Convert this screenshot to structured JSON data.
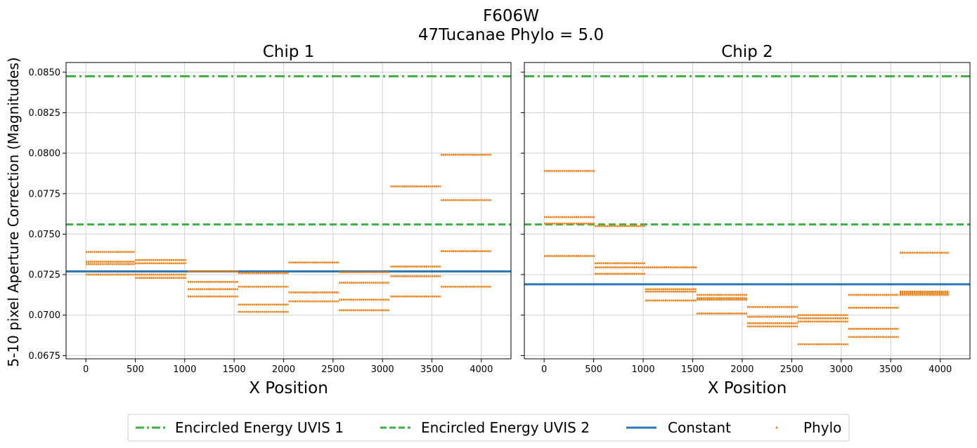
{
  "figure": {
    "title_line1": "F606W",
    "title_line2": "47Tucanae Phylo = 5.0",
    "ylabel": "5-10 pixel Aperture Correction (Magnitudes)"
  },
  "colors": {
    "ee": "#3cb043",
    "constant": "#2b78b8",
    "phylo": "#f07d10",
    "grid": "#d0d0d0"
  },
  "legend": [
    {
      "label": "Encircled Energy UVIS 1",
      "style": "dashdot"
    },
    {
      "label": "Encircled Energy UVIS 2",
      "style": "dashed"
    },
    {
      "label": "Constant",
      "style": "solid"
    },
    {
      "label": "Phylo",
      "style": "dot"
    }
  ],
  "chart_data": [
    {
      "type": "scatter",
      "title": "Chip 1",
      "xlabel": "X Position",
      "ylabel": "5-10 pixel Aperture Correction (Magnitudes)",
      "xlim": [
        -200,
        4300
      ],
      "ylim": [
        0.0673,
        0.0856
      ],
      "xticks": [
        0,
        500,
        1000,
        1500,
        2000,
        2500,
        3000,
        3500,
        4000
      ],
      "yticks": [
        0.0675,
        0.07,
        0.0725,
        0.075,
        0.0775,
        0.08,
        0.0825,
        0.085
      ],
      "ytick_labels": [
        "0.0675",
        "0.0700",
        "0.0725",
        "0.0750",
        "0.0775",
        "0.0800",
        "0.0825",
        "0.0850"
      ],
      "show_ytick_labels": true,
      "grid": true,
      "hlines": [
        {
          "name": "Encircled Energy UVIS 1",
          "y": 0.08475,
          "style": "dashdot"
        },
        {
          "name": "Encircled Energy UVIS 2",
          "y": 0.0756,
          "style": "dashed"
        },
        {
          "name": "Constant",
          "y": 0.0727,
          "style": "solid"
        }
      ],
      "phylo_segments": [
        {
          "x0": 0,
          "x1": 500,
          "y": 0.0739
        },
        {
          "x0": 0,
          "x1": 500,
          "y": 0.0733
        },
        {
          "x0": 0,
          "x1": 500,
          "y": 0.07315
        },
        {
          "x0": 0,
          "x1": 500,
          "y": 0.0725
        },
        {
          "x0": 500,
          "x1": 1020,
          "y": 0.0734
        },
        {
          "x0": 500,
          "x1": 1020,
          "y": 0.0732
        },
        {
          "x0": 500,
          "x1": 1020,
          "y": 0.0725
        },
        {
          "x0": 500,
          "x1": 1020,
          "y": 0.0723
        },
        {
          "x0": 1030,
          "x1": 1540,
          "y": 0.0727
        },
        {
          "x0": 1030,
          "x1": 1540,
          "y": 0.07205
        },
        {
          "x0": 1030,
          "x1": 1540,
          "y": 0.0716
        },
        {
          "x0": 1030,
          "x1": 1540,
          "y": 0.07115
        },
        {
          "x0": 1540,
          "x1": 2050,
          "y": 0.0726
        },
        {
          "x0": 1540,
          "x1": 2050,
          "y": 0.07175
        },
        {
          "x0": 1540,
          "x1": 2050,
          "y": 0.07065
        },
        {
          "x0": 1540,
          "x1": 2050,
          "y": 0.0702
        },
        {
          "x0": 2050,
          "x1": 2560,
          "y": 0.07325
        },
        {
          "x0": 2050,
          "x1": 2560,
          "y": 0.0714
        },
        {
          "x0": 2050,
          "x1": 2560,
          "y": 0.07085
        },
        {
          "x0": 2560,
          "x1": 3070,
          "y": 0.07265
        },
        {
          "x0": 2560,
          "x1": 3070,
          "y": 0.072
        },
        {
          "x0": 2560,
          "x1": 3070,
          "y": 0.07095
        },
        {
          "x0": 2560,
          "x1": 3070,
          "y": 0.0703
        },
        {
          "x0": 3080,
          "x1": 3590,
          "y": 0.07795
        },
        {
          "x0": 3080,
          "x1": 3590,
          "y": 0.073
        },
        {
          "x0": 3080,
          "x1": 3590,
          "y": 0.0724
        },
        {
          "x0": 3080,
          "x1": 3590,
          "y": 0.07115
        },
        {
          "x0": 3590,
          "x1": 4100,
          "y": 0.0799
        },
        {
          "x0": 3590,
          "x1": 4100,
          "y": 0.0771
        },
        {
          "x0": 3590,
          "x1": 4100,
          "y": 0.07395
        },
        {
          "x0": 3590,
          "x1": 4100,
          "y": 0.07175
        }
      ]
    },
    {
      "type": "scatter",
      "title": "Chip 2",
      "xlabel": "X Position",
      "ylabel": "",
      "xlim": [
        -200,
        4300
      ],
      "ylim": [
        0.0673,
        0.0856
      ],
      "xticks": [
        0,
        500,
        1000,
        1500,
        2000,
        2500,
        3000,
        3500,
        4000
      ],
      "yticks": [
        0.0675,
        0.07,
        0.0725,
        0.075,
        0.0775,
        0.08,
        0.0825,
        0.085
      ],
      "ytick_labels": [],
      "show_ytick_labels": false,
      "grid": true,
      "hlines": [
        {
          "name": "Encircled Energy UVIS 1",
          "y": 0.08475,
          "style": "dashdot"
        },
        {
          "name": "Encircled Energy UVIS 2",
          "y": 0.0756,
          "style": "dashed"
        },
        {
          "name": "Constant",
          "y": 0.0719,
          "style": "solid"
        }
      ],
      "phylo_segments": [
        {
          "x0": 0,
          "x1": 510,
          "y": 0.0789
        },
        {
          "x0": 0,
          "x1": 510,
          "y": 0.07605
        },
        {
          "x0": 0,
          "x1": 510,
          "y": 0.07565
        },
        {
          "x0": 0,
          "x1": 510,
          "y": 0.07365
        },
        {
          "x0": 510,
          "x1": 1020,
          "y": 0.0755
        },
        {
          "x0": 510,
          "x1": 1020,
          "y": 0.0732
        },
        {
          "x0": 510,
          "x1": 1540,
          "y": 0.07295
        },
        {
          "x0": 510,
          "x1": 1020,
          "y": 0.07255
        },
        {
          "x0": 1020,
          "x1": 1540,
          "y": 0.0716
        },
        {
          "x0": 1020,
          "x1": 1540,
          "y": 0.07145
        },
        {
          "x0": 1020,
          "x1": 1540,
          "y": 0.0709
        },
        {
          "x0": 1540,
          "x1": 2050,
          "y": 0.07125
        },
        {
          "x0": 1540,
          "x1": 2050,
          "y": 0.07105
        },
        {
          "x0": 1540,
          "x1": 2050,
          "y": 0.07095
        },
        {
          "x0": 1540,
          "x1": 2050,
          "y": 0.0701
        },
        {
          "x0": 2050,
          "x1": 2560,
          "y": 0.0705
        },
        {
          "x0": 2050,
          "x1": 2560,
          "y": 0.0699
        },
        {
          "x0": 2050,
          "x1": 2560,
          "y": 0.0695
        },
        {
          "x0": 2050,
          "x1": 2560,
          "y": 0.0693
        },
        {
          "x0": 2560,
          "x1": 3070,
          "y": 0.07
        },
        {
          "x0": 2560,
          "x1": 3070,
          "y": 0.0698
        },
        {
          "x0": 2560,
          "x1": 3070,
          "y": 0.0696
        },
        {
          "x0": 2560,
          "x1": 3070,
          "y": 0.0682
        },
        {
          "x0": 3070,
          "x1": 3580,
          "y": 0.07125
        },
        {
          "x0": 3070,
          "x1": 3580,
          "y": 0.07045
        },
        {
          "x0": 3070,
          "x1": 3580,
          "y": 0.06915
        },
        {
          "x0": 3070,
          "x1": 3580,
          "y": 0.06865
        },
        {
          "x0": 3590,
          "x1": 4090,
          "y": 0.07385
        },
        {
          "x0": 3590,
          "x1": 4090,
          "y": 0.07145
        },
        {
          "x0": 3590,
          "x1": 4090,
          "y": 0.07135
        },
        {
          "x0": 3590,
          "x1": 4090,
          "y": 0.07125
        }
      ]
    }
  ]
}
